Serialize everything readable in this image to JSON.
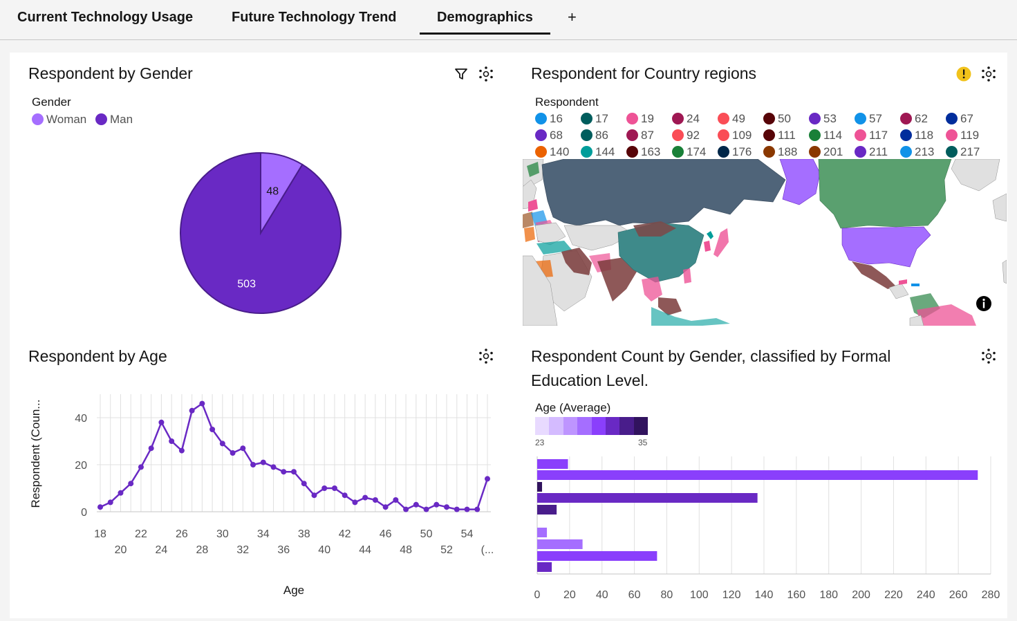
{
  "tabs": [
    {
      "label": "Current Technology Usage"
    },
    {
      "label": "Future Technology Trend"
    },
    {
      "label": "Demographics"
    }
  ],
  "add_tab_label": "+",
  "gender_panel": {
    "title": "Respondent by Gender",
    "legend_title": "Gender",
    "legend": [
      {
        "label": "Woman",
        "color": "#a56eff"
      },
      {
        "label": "Man",
        "color": "#6929c4"
      }
    ]
  },
  "map_panel": {
    "title": "Respondent for Country regions",
    "legend_title": "Respondent",
    "legend": [
      {
        "label": "16",
        "color": "#1192e8"
      },
      {
        "label": "17",
        "color": "#005d5d"
      },
      {
        "label": "19",
        "color": "#ee5396"
      },
      {
        "label": "24",
        "color": "#9f1853"
      },
      {
        "label": "49",
        "color": "#fa4d56"
      },
      {
        "label": "50",
        "color": "#570408"
      },
      {
        "label": "53",
        "color": "#6929c4"
      },
      {
        "label": "57",
        "color": "#1192e8"
      },
      {
        "label": "62",
        "color": "#9f1853"
      },
      {
        "label": "67",
        "color": "#002d9c"
      },
      {
        "label": "68",
        "color": "#6929c4"
      },
      {
        "label": "86",
        "color": "#005d5d"
      },
      {
        "label": "87",
        "color": "#9f1853"
      },
      {
        "label": "92",
        "color": "#fa4d56"
      },
      {
        "label": "109",
        "color": "#fa4d56"
      },
      {
        "label": "111",
        "color": "#570408"
      },
      {
        "label": "114",
        "color": "#198038"
      },
      {
        "label": "117",
        "color": "#ee5396"
      },
      {
        "label": "118",
        "color": "#002d9c"
      },
      {
        "label": "119",
        "color": "#ee5396"
      },
      {
        "label": "140",
        "color": "#eb6200"
      },
      {
        "label": "144",
        "color": "#009d9a"
      },
      {
        "label": "163",
        "color": "#570408"
      },
      {
        "label": "174",
        "color": "#198038"
      },
      {
        "label": "176",
        "color": "#012749"
      },
      {
        "label": "188",
        "color": "#8a3800"
      },
      {
        "label": "201",
        "color": "#8a3800"
      },
      {
        "label": "211",
        "color": "#6929c4"
      },
      {
        "label": "213",
        "color": "#1192e8"
      },
      {
        "label": "217",
        "color": "#005d5d"
      }
    ]
  },
  "age_panel": {
    "title": "Respondent by Age"
  },
  "edu_panel": {
    "title_line1": "Respondent Count by Gender, classified by Formal",
    "title_line2": "Education Level.",
    "legend_title": "Age (Average)",
    "legend_min": "23",
    "legend_max": "35",
    "gradient": [
      "#e8daff",
      "#d4bbff",
      "#be95ff",
      "#a56eff",
      "#8a3ffc",
      "#6929c4",
      "#491d8b",
      "#31135e"
    ]
  },
  "chart_data": [
    {
      "type": "pie",
      "labels": [
        "Woman",
        "Man"
      ],
      "values": [
        48,
        503
      ],
      "colors": [
        "#a56eff",
        "#6929c4"
      ]
    },
    {
      "type": "line",
      "xlabel": "Age",
      "ylabel": "Respondent (Coun...",
      "x_ticks_top": [
        "18",
        "22",
        "26",
        "30",
        "34",
        "38",
        "42",
        "46",
        "50",
        "54"
      ],
      "x_ticks_bottom": [
        "20",
        "24",
        "28",
        "32",
        "36",
        "40",
        "44",
        "48",
        "52",
        "(..."
      ],
      "y_ticks": [
        "0",
        "20",
        "40"
      ],
      "ylim": [
        0,
        50
      ],
      "x": [
        18,
        19,
        20,
        21,
        22,
        23,
        24,
        25,
        26,
        27,
        28,
        29,
        30,
        31,
        32,
        33,
        34,
        35,
        36,
        37,
        38,
        39,
        40,
        41,
        42,
        43,
        44,
        45,
        46,
        47,
        48,
        49,
        50,
        51,
        52,
        53,
        54,
        55,
        56
      ],
      "values": [
        2,
        4,
        8,
        12,
        19,
        27,
        38,
        30,
        26,
        43,
        46,
        35,
        29,
        25,
        27,
        20,
        21,
        19,
        17,
        17,
        12,
        7,
        10,
        10,
        7,
        4,
        6,
        5,
        2,
        5,
        1,
        3,
        1,
        3,
        2,
        1,
        1,
        1,
        14
      ],
      "color": "#6929c4"
    },
    {
      "type": "bar",
      "orientation": "horizontal",
      "x_ticks": [
        "0",
        "20",
        "40",
        "60",
        "80",
        "100",
        "120",
        "140",
        "160",
        "180",
        "200",
        "220",
        "240",
        "260",
        "280"
      ],
      "xlim": [
        0,
        280
      ],
      "bars": [
        {
          "value": 19,
          "color": "#8a3ffc"
        },
        {
          "value": 272,
          "color": "#8a3ffc"
        },
        {
          "value": 3,
          "color": "#31135e"
        },
        {
          "value": 136,
          "color": "#6929c4"
        },
        {
          "value": 12,
          "color": "#491d8b"
        },
        {
          "value": 6,
          "color": "#a56eff"
        },
        {
          "value": 28,
          "color": "#a56eff"
        },
        {
          "value": 74,
          "color": "#8a3ffc"
        },
        {
          "value": 9,
          "color": "#6929c4"
        }
      ]
    }
  ]
}
